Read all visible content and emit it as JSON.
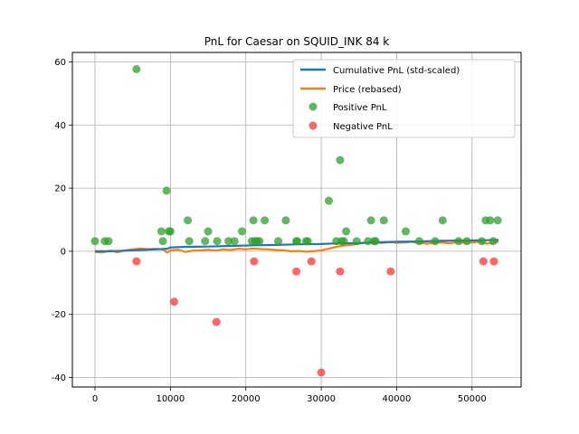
{
  "chart_data": {
    "type": "scatter",
    "title": "PnL for Caesar on SQUID_INK 84 k",
    "xlabel": "",
    "ylabel": "",
    "xlim": [
      -3000,
      56500
    ],
    "ylim": [
      -43,
      63
    ],
    "xticks": [
      0,
      10000,
      20000,
      30000,
      40000,
      50000
    ],
    "yticks": [
      -40,
      -20,
      0,
      20,
      40,
      60
    ],
    "grid": true,
    "legend_position": "top-right",
    "colors": {
      "cumulative": "#1f77b4",
      "price": "#ff7f0e",
      "positive": "#2ca02c",
      "negative": "#ff3333"
    },
    "series": [
      {
        "name": "Cumulative PnL (std-scaled)",
        "type": "line",
        "x": [
          0,
          2000,
          4000,
          6000,
          8000,
          9600,
          10000,
          12000,
          15000,
          18000,
          21000,
          24000,
          27000,
          30000,
          32000,
          35000,
          37000,
          40000,
          43000,
          46000,
          49000,
          52000,
          53500
        ],
        "y": [
          0,
          0,
          0.2,
          0.4,
          0.6,
          0.8,
          1.2,
          1.4,
          1.5,
          1.7,
          1.9,
          2.0,
          2.2,
          2.3,
          2.5,
          2.6,
          2.8,
          3.0,
          3.1,
          3.3,
          3.4,
          3.5,
          3.6
        ]
      },
      {
        "name": "Price (rebased)",
        "type": "line",
        "x": [
          0,
          1000,
          2000,
          3000,
          4000,
          5000,
          6000,
          7000,
          8000,
          9000,
          9600,
          10000,
          11000,
          12000,
          13000,
          14000,
          15000,
          16000,
          17000,
          18000,
          19000,
          20000,
          21000,
          22000,
          23000,
          24000,
          25000,
          26000,
          27000,
          28000,
          29000,
          30000,
          31000,
          32000,
          33000,
          34000,
          35000,
          36000,
          37000,
          38000,
          39000,
          40000,
          41000,
          42000,
          43000,
          44000,
          45000,
          46000,
          47000,
          48000,
          49000,
          50000,
          51000,
          52000,
          53000,
          53500
        ],
        "y": [
          -0.2,
          -0.4,
          0.2,
          -0.3,
          0.3,
          0.6,
          0.9,
          0.7,
          0.8,
          0.6,
          -0.4,
          0.3,
          0.5,
          -0.2,
          0.2,
          0.3,
          0.5,
          0.2,
          0.6,
          0.4,
          0.8,
          0.6,
          0.9,
          0.7,
          0.6,
          0.4,
          0.3,
          0.0,
          0.1,
          -0.1,
          0.0,
          0.3,
          0.8,
          1.4,
          1.8,
          2.0,
          2.4,
          2.7,
          3.1,
          2.6,
          2.9,
          2.7,
          2.8,
          3.0,
          2.6,
          2.4,
          2.6,
          2.8,
          2.5,
          2.9,
          2.7,
          2.8,
          3.0,
          2.4,
          2.8,
          3.0
        ]
      },
      {
        "name": "Positive PnL",
        "type": "scatter",
        "points": [
          [
            0,
            3.2
          ],
          [
            1300,
            3.2
          ],
          [
            1800,
            3.2
          ],
          [
            5500,
            57.7
          ],
          [
            8800,
            6.3
          ],
          [
            9000,
            3.2
          ],
          [
            9500,
            19.2
          ],
          [
            9800,
            6.3
          ],
          [
            10000,
            6.3
          ],
          [
            12300,
            9.8
          ],
          [
            12500,
            3.2
          ],
          [
            14600,
            3.2
          ],
          [
            15000,
            6.3
          ],
          [
            16200,
            3.2
          ],
          [
            17700,
            3.2
          ],
          [
            18500,
            3.2
          ],
          [
            19500,
            6.3
          ],
          [
            20800,
            3.2
          ],
          [
            21000,
            9.8
          ],
          [
            21200,
            3.2
          ],
          [
            21500,
            3.2
          ],
          [
            21800,
            3.2
          ],
          [
            22500,
            9.8
          ],
          [
            24300,
            3.2
          ],
          [
            25300,
            9.8
          ],
          [
            26700,
            3.2
          ],
          [
            26800,
            3.2
          ],
          [
            28000,
            3.2
          ],
          [
            28200,
            3.2
          ],
          [
            31000,
            16.0
          ],
          [
            32000,
            3.2
          ],
          [
            32500,
            28.9
          ],
          [
            32700,
            3.2
          ],
          [
            33000,
            3.2
          ],
          [
            33300,
            6.3
          ],
          [
            34700,
            3.2
          ],
          [
            36200,
            3.2
          ],
          [
            36600,
            9.8
          ],
          [
            37000,
            3.2
          ],
          [
            37200,
            3.2
          ],
          [
            38300,
            9.8
          ],
          [
            41200,
            6.3
          ],
          [
            43000,
            3.2
          ],
          [
            45100,
            3.2
          ],
          [
            46100,
            9.8
          ],
          [
            48200,
            3.2
          ],
          [
            49300,
            3.2
          ],
          [
            51300,
            3.2
          ],
          [
            51800,
            9.8
          ],
          [
            52400,
            9.8
          ],
          [
            52800,
            3.2
          ],
          [
            53400,
            9.8
          ]
        ]
      },
      {
        "name": "Negative PnL",
        "type": "scatter",
        "points": [
          [
            5500,
            -3.2
          ],
          [
            10500,
            -16.0
          ],
          [
            16100,
            -22.4
          ],
          [
            21100,
            -3.2
          ],
          [
            26700,
            -6.4
          ],
          [
            28700,
            -3.2
          ],
          [
            30000,
            -38.4
          ],
          [
            32500,
            -6.4
          ],
          [
            39200,
            -6.4
          ],
          [
            51500,
            -3.2
          ],
          [
            52900,
            -3.2
          ]
        ]
      }
    ]
  }
}
